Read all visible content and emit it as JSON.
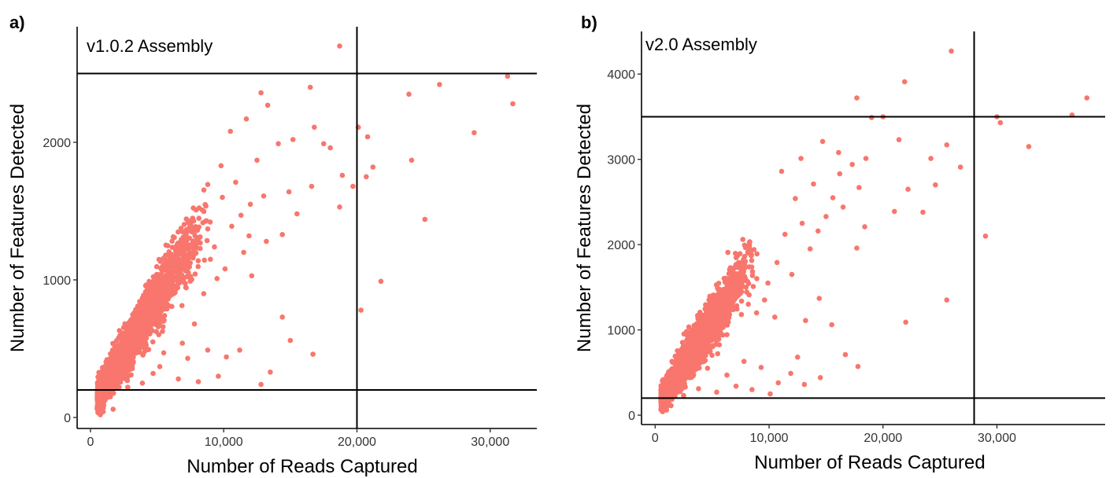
{
  "point_color": "#F8766D",
  "chart_data": [
    {
      "type": "scatter",
      "panel_label": "a)",
      "annotation": "v1.0.2 Assembly",
      "xlabel": "Number of Reads Captured",
      "ylabel": "Number of Features Detected",
      "xlim": [
        -1000,
        33500
      ],
      "ylim": [
        -80,
        2840
      ],
      "xticks": [
        0,
        10000,
        20000,
        30000
      ],
      "xtick_labels": [
        "0",
        "10,000",
        "20,000",
        "30,000"
      ],
      "yticks": [
        0,
        1000,
        2000
      ],
      "ytick_labels": [
        "0",
        "1000",
        "2000"
      ],
      "hlines": [
        200,
        2500
      ],
      "vlines": [
        20000
      ],
      "grid": false,
      "dense_cloud": {
        "x_range": [
          500,
          9000
        ],
        "slope": 0.155,
        "intercept": 80,
        "spread": 95
      },
      "points": [
        {
          "x": 18700,
          "y": 2700
        },
        {
          "x": 31300,
          "y": 2480
        },
        {
          "x": 31700,
          "y": 2280
        },
        {
          "x": 26200,
          "y": 2420
        },
        {
          "x": 23900,
          "y": 2350
        },
        {
          "x": 28800,
          "y": 2070
        },
        {
          "x": 20100,
          "y": 2110
        },
        {
          "x": 20800,
          "y": 2040
        },
        {
          "x": 21200,
          "y": 1820
        },
        {
          "x": 20700,
          "y": 1750
        },
        {
          "x": 24100,
          "y": 1870
        },
        {
          "x": 25100,
          "y": 1440
        },
        {
          "x": 21800,
          "y": 990
        },
        {
          "x": 20300,
          "y": 780
        },
        {
          "x": 19700,
          "y": 1680
        },
        {
          "x": 18900,
          "y": 1760
        },
        {
          "x": 18700,
          "y": 1530
        },
        {
          "x": 16500,
          "y": 2400
        },
        {
          "x": 16800,
          "y": 2110
        },
        {
          "x": 12800,
          "y": 2360
        },
        {
          "x": 18000,
          "y": 1960
        },
        {
          "x": 17500,
          "y": 1990
        },
        {
          "x": 15200,
          "y": 2020
        },
        {
          "x": 13300,
          "y": 2270
        },
        {
          "x": 11700,
          "y": 2170
        },
        {
          "x": 14100,
          "y": 1990
        },
        {
          "x": 12500,
          "y": 1870
        },
        {
          "x": 16600,
          "y": 1680
        },
        {
          "x": 14900,
          "y": 1640
        },
        {
          "x": 15500,
          "y": 1480
        },
        {
          "x": 13000,
          "y": 1610
        },
        {
          "x": 12000,
          "y": 1550
        },
        {
          "x": 11300,
          "y": 1470
        },
        {
          "x": 14400,
          "y": 1330
        },
        {
          "x": 13200,
          "y": 1280
        },
        {
          "x": 12100,
          "y": 1030
        },
        {
          "x": 14400,
          "y": 730
        },
        {
          "x": 15000,
          "y": 560
        },
        {
          "x": 16700,
          "y": 460
        },
        {
          "x": 13500,
          "y": 330
        },
        {
          "x": 12800,
          "y": 240
        },
        {
          "x": 11200,
          "y": 490
        },
        {
          "x": 10200,
          "y": 440
        },
        {
          "x": 9600,
          "y": 300
        },
        {
          "x": 8800,
          "y": 490
        },
        {
          "x": 8100,
          "y": 260
        },
        {
          "x": 7300,
          "y": 430
        },
        {
          "x": 6600,
          "y": 280
        },
        {
          "x": 5500,
          "y": 470
        },
        {
          "x": 4700,
          "y": 320
        },
        {
          "x": 3900,
          "y": 250
        },
        {
          "x": 3200,
          "y": 400
        },
        {
          "x": 2800,
          "y": 220
        },
        {
          "x": 9300,
          "y": 1240
        },
        {
          "x": 10600,
          "y": 1390
        },
        {
          "x": 9900,
          "y": 1600
        },
        {
          "x": 10900,
          "y": 1710
        },
        {
          "x": 8700,
          "y": 1430
        },
        {
          "x": 11500,
          "y": 1200
        },
        {
          "x": 10100,
          "y": 1080
        },
        {
          "x": 11900,
          "y": 1320
        },
        {
          "x": 1700,
          "y": 60
        },
        {
          "x": 10500,
          "y": 2080
        },
        {
          "x": 9800,
          "y": 1830
        },
        {
          "x": 9000,
          "y": 1150
        },
        {
          "x": 7800,
          "y": 680
        },
        {
          "x": 6900,
          "y": 540
        },
        {
          "x": 5200,
          "y": 370
        },
        {
          "x": 8500,
          "y": 900
        },
        {
          "x": 9500,
          "y": 1010
        }
      ]
    },
    {
      "type": "scatter",
      "panel_label": "b)",
      "annotation": "v2.0 Assembly",
      "xlabel": "Number of Reads Captured",
      "ylabel": "Number of Features Detected",
      "xlim": [
        -1200,
        39500
      ],
      "ylim": [
        -110,
        4500
      ],
      "xticks": [
        0,
        10000,
        20000,
        30000
      ],
      "xtick_labels": [
        "0",
        "10,000",
        "20,000",
        "30,000"
      ],
      "yticks": [
        0,
        1000,
        2000,
        3000,
        4000
      ],
      "ytick_labels": [
        "0",
        "1000",
        "2000",
        "3000",
        "4000"
      ],
      "hlines": [
        200,
        3500
      ],
      "vlines": [
        28000
      ],
      "grid": false,
      "dense_cloud": {
        "x_range": [
          500,
          9000
        ],
        "slope": 0.2,
        "intercept": 100,
        "spread": 130
      },
      "points": [
        {
          "x": 26000,
          "y": 4270
        },
        {
          "x": 37900,
          "y": 3720
        },
        {
          "x": 36600,
          "y": 3520
        },
        {
          "x": 30000,
          "y": 3500
        },
        {
          "x": 30300,
          "y": 3430
        },
        {
          "x": 32800,
          "y": 3150
        },
        {
          "x": 29000,
          "y": 2100
        },
        {
          "x": 26800,
          "y": 2910
        },
        {
          "x": 25600,
          "y": 3170
        },
        {
          "x": 24200,
          "y": 3010
        },
        {
          "x": 24600,
          "y": 2700
        },
        {
          "x": 25600,
          "y": 1350
        },
        {
          "x": 22000,
          "y": 1090
        },
        {
          "x": 21900,
          "y": 3910
        },
        {
          "x": 19000,
          "y": 3490
        },
        {
          "x": 17700,
          "y": 3720
        },
        {
          "x": 21400,
          "y": 3230
        },
        {
          "x": 22200,
          "y": 2650
        },
        {
          "x": 23500,
          "y": 2380
        },
        {
          "x": 21000,
          "y": 2390
        },
        {
          "x": 20000,
          "y": 3500
        },
        {
          "x": 18500,
          "y": 3010
        },
        {
          "x": 17300,
          "y": 2940
        },
        {
          "x": 17900,
          "y": 2670
        },
        {
          "x": 16200,
          "y": 2830
        },
        {
          "x": 16500,
          "y": 2440
        },
        {
          "x": 18400,
          "y": 2210
        },
        {
          "x": 15600,
          "y": 2550
        },
        {
          "x": 15000,
          "y": 2330
        },
        {
          "x": 14300,
          "y": 2160
        },
        {
          "x": 17700,
          "y": 1960
        },
        {
          "x": 16700,
          "y": 710
        },
        {
          "x": 17800,
          "y": 570
        },
        {
          "x": 15500,
          "y": 1060
        },
        {
          "x": 14400,
          "y": 1370
        },
        {
          "x": 13200,
          "y": 1110
        },
        {
          "x": 12500,
          "y": 680
        },
        {
          "x": 13100,
          "y": 360
        },
        {
          "x": 14500,
          "y": 440
        },
        {
          "x": 11900,
          "y": 490
        },
        {
          "x": 10800,
          "y": 380
        },
        {
          "x": 10100,
          "y": 250
        },
        {
          "x": 9300,
          "y": 560
        },
        {
          "x": 8500,
          "y": 300
        },
        {
          "x": 7800,
          "y": 630
        },
        {
          "x": 7100,
          "y": 340
        },
        {
          "x": 6300,
          "y": 470
        },
        {
          "x": 5400,
          "y": 270
        },
        {
          "x": 4600,
          "y": 550
        },
        {
          "x": 3800,
          "y": 310
        },
        {
          "x": 3000,
          "y": 440
        },
        {
          "x": 2500,
          "y": 230
        },
        {
          "x": 13600,
          "y": 1950
        },
        {
          "x": 12900,
          "y": 2250
        },
        {
          "x": 11400,
          "y": 2120
        },
        {
          "x": 12300,
          "y": 2540
        },
        {
          "x": 11100,
          "y": 2860
        },
        {
          "x": 13900,
          "y": 2710
        },
        {
          "x": 12800,
          "y": 3010
        },
        {
          "x": 14700,
          "y": 3210
        },
        {
          "x": 16100,
          "y": 3080
        },
        {
          "x": 10700,
          "y": 1790
        },
        {
          "x": 9900,
          "y": 1550
        },
        {
          "x": 1000,
          "y": 60
        },
        {
          "x": 8900,
          "y": 1200
        },
        {
          "x": 9600,
          "y": 1350
        },
        {
          "x": 12000,
          "y": 1650
        },
        {
          "x": 10500,
          "y": 1150
        }
      ]
    }
  ]
}
